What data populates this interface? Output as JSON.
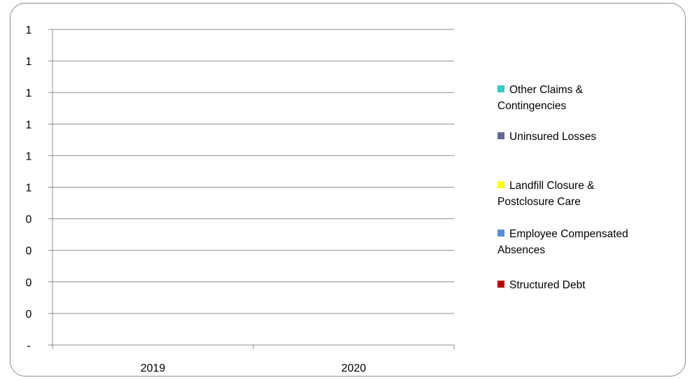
{
  "chart_data": {
    "type": "bar",
    "title": "",
    "categories": [
      "2019",
      "2020"
    ],
    "y_tick_labels": [
      "-",
      "0",
      "0",
      "0",
      "0",
      "1",
      "1",
      "1",
      "1",
      "1",
      "1"
    ],
    "ylim": [
      0,
      1
    ],
    "grid": true,
    "legend_position": "right",
    "series": [
      {
        "name": "Other Claims & Contingencies",
        "color": "#33CCCC",
        "values": [
          0,
          0
        ]
      },
      {
        "name": "Uninsured Losses",
        "color": "#666699",
        "values": [
          0,
          0
        ]
      },
      {
        "name": "Landfill Closure & Postclosure Care",
        "color": "#FFFF00",
        "values": [
          0,
          0
        ]
      },
      {
        "name": "Employee Compensated Absences",
        "color": "#558ED5",
        "values": [
          0,
          0
        ]
      },
      {
        "name": "Structured Debt",
        "color": "#C00000",
        "values": [
          0,
          0
        ]
      }
    ]
  },
  "legend": {
    "items": [
      {
        "line1": "Other Claims &",
        "line2": "Contingencies",
        "color": "#33CCCC"
      },
      {
        "line1": "Uninsured Losses",
        "line2": "",
        "color": "#666699"
      },
      {
        "line1": "Landfill Closure &",
        "line2": "Postclosure Care",
        "color": "#FFFF00"
      },
      {
        "line1": "Employee Compensated",
        "line2": "Absences",
        "color": "#558ED5"
      },
      {
        "line1": "Structured Debt",
        "line2": "",
        "color": "#C00000"
      }
    ]
  }
}
